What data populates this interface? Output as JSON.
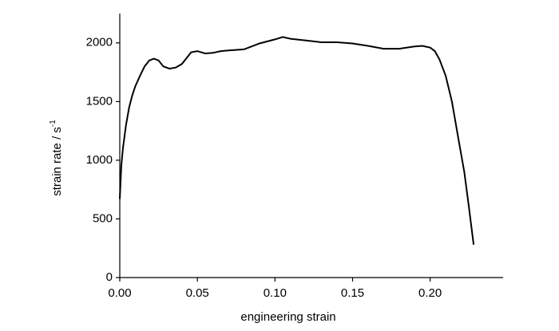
{
  "chart_data": {
    "type": "line",
    "x_label": "engineering strain",
    "y_label": "strain rate / s",
    "y_label_superscript": "-1",
    "x": [
      0.0,
      0.001,
      0.002,
      0.004,
      0.006,
      0.008,
      0.01,
      0.013,
      0.016,
      0.019,
      0.022,
      0.025,
      0.028,
      0.032,
      0.036,
      0.04,
      0.043,
      0.046,
      0.05,
      0.055,
      0.06,
      0.065,
      0.07,
      0.08,
      0.09,
      0.1,
      0.105,
      0.11,
      0.12,
      0.13,
      0.14,
      0.15,
      0.16,
      0.17,
      0.18,
      0.19,
      0.195,
      0.2,
      0.203,
      0.206,
      0.21,
      0.214,
      0.218,
      0.222,
      0.225,
      0.228
    ],
    "series": [
      {
        "color": "#000000",
        "values": [
          670,
          950,
          1100,
          1300,
          1450,
          1550,
          1630,
          1720,
          1800,
          1850,
          1865,
          1850,
          1800,
          1780,
          1790,
          1820,
          1870,
          1920,
          1930,
          1910,
          1915,
          1930,
          1935,
          1945,
          1995,
          2030,
          2050,
          2035,
          2020,
          2005,
          2005,
          1995,
          1975,
          1950,
          1950,
          1970,
          1975,
          1960,
          1930,
          1860,
          1720,
          1500,
          1200,
          900,
          600,
          280
        ]
      }
    ],
    "xlim": [
      0,
      0.247
    ],
    "ylim": [
      0,
      2250
    ],
    "xticks": [
      {
        "value": 0,
        "label": "0.00"
      },
      {
        "value": 0.05,
        "label": "0.05"
      },
      {
        "value": 0.1,
        "label": "0.10"
      },
      {
        "value": 0.15,
        "label": "0.15"
      },
      {
        "value": 0.2,
        "label": "0.20"
      }
    ],
    "yticks": [
      0,
      500,
      1000,
      1500,
      2000
    ]
  }
}
